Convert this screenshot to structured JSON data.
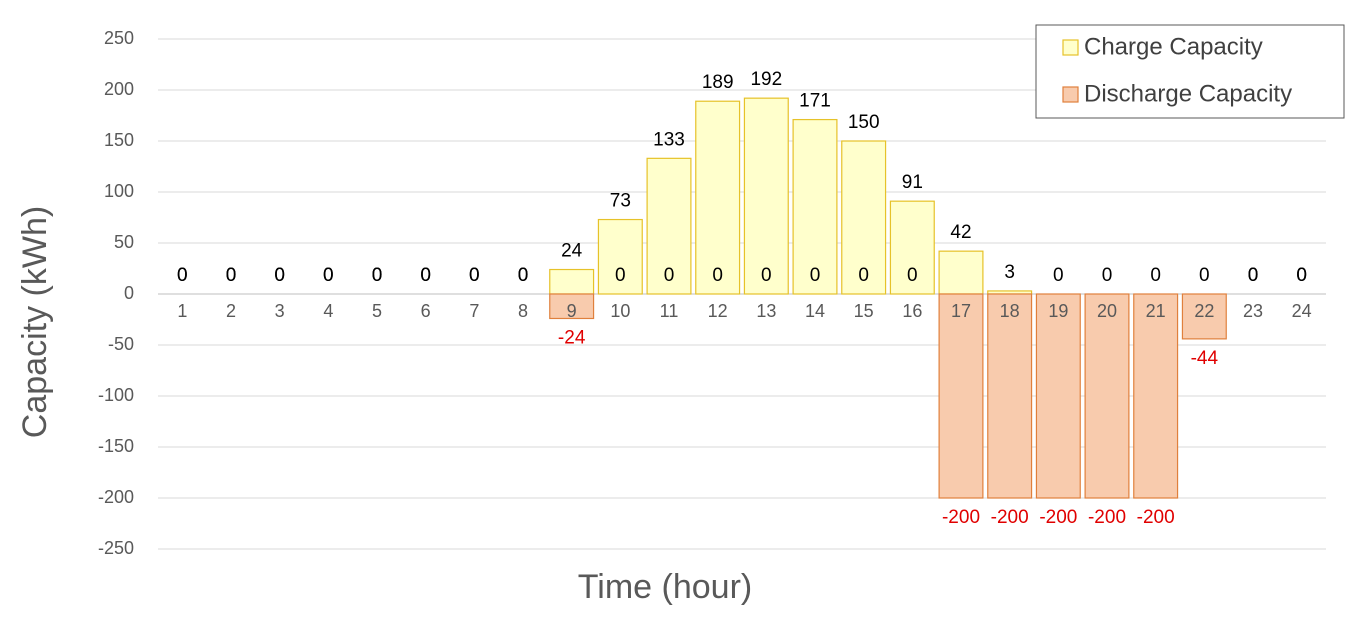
{
  "chart_data": {
    "type": "bar",
    "x_label": "Time (hour)",
    "y_label": "Capacity (kWh)",
    "categories": [
      "1",
      "2",
      "3",
      "4",
      "5",
      "6",
      "7",
      "8",
      "9",
      "10",
      "11",
      "12",
      "13",
      "14",
      "15",
      "16",
      "17",
      "18",
      "19",
      "20",
      "21",
      "22",
      "23",
      "24"
    ],
    "series": [
      {
        "name": "Charge Capacity",
        "color": "#ffffcc",
        "edge_color": "#e6c229",
        "values": [
          0,
          0,
          0,
          0,
          0,
          0,
          0,
          0,
          24,
          73,
          133,
          189,
          192,
          171,
          150,
          91,
          42,
          3,
          0,
          0,
          0,
          0,
          0,
          0
        ]
      },
      {
        "name": "Discharge Capacity",
        "color": "#f8cbad",
        "edge_color": "#e0803c",
        "values": [
          0,
          0,
          0,
          0,
          0,
          0,
          0,
          0,
          -24,
          0,
          0,
          0,
          0,
          0,
          0,
          0,
          -200,
          -200,
          -200,
          -200,
          -200,
          -44,
          0,
          0
        ]
      }
    ],
    "ylim": [
      -250,
      250
    ],
    "yticks": [
      -250,
      -200,
      -150,
      -100,
      -50,
      0,
      50,
      100,
      150,
      200,
      250
    ],
    "negative_color": "#e00000",
    "grid": true,
    "legend": "top-right"
  }
}
